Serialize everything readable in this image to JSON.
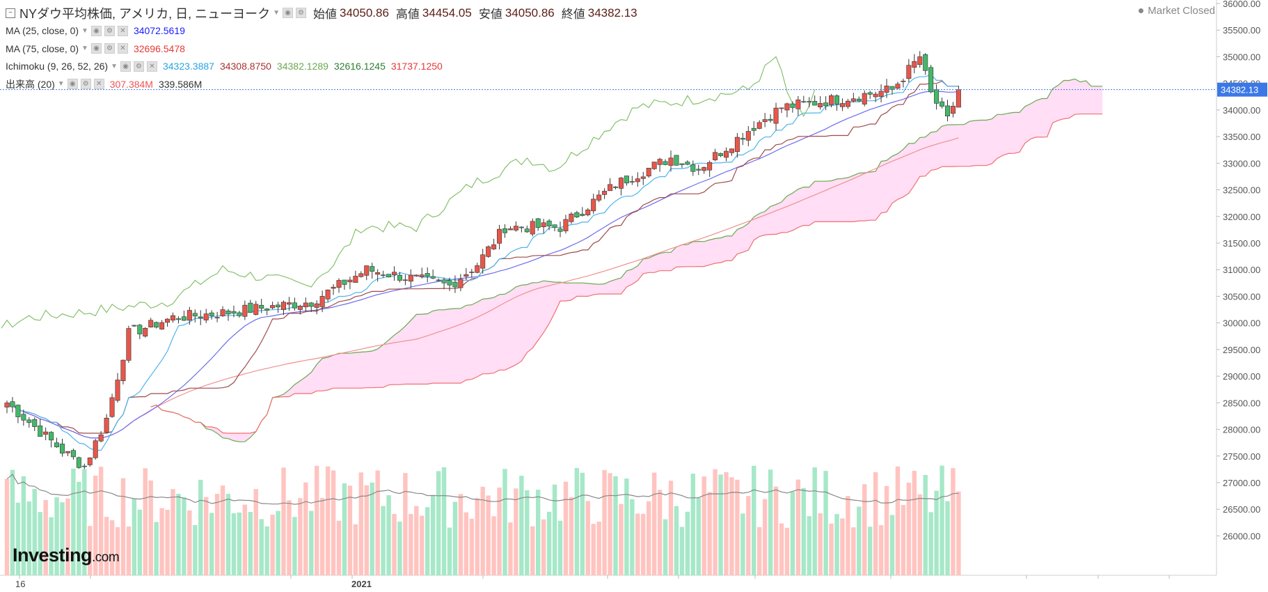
{
  "header": {
    "title": "NYダウ平均株価, アメリカ, 日, ニューヨーク",
    "ohlc": [
      {
        "label": "始値",
        "value": "34050.86"
      },
      {
        "label": "高値",
        "value": "34454.05"
      },
      {
        "label": "安値",
        "value": "34050.86"
      },
      {
        "label": "終値",
        "value": "34382.13"
      }
    ],
    "status": "Market Closed"
  },
  "indicators": [
    {
      "name": "MA (25, close, 0)",
      "values": [
        {
          "v": "34072.5619",
          "color": "#1a1aff"
        }
      ]
    },
    {
      "name": "MA (75, close, 0)",
      "values": [
        {
          "v": "32696.5478",
          "color": "#e53935"
        }
      ]
    },
    {
      "name": "Ichimoku (9, 26, 52, 26)",
      "values": [
        {
          "v": "34323.3887",
          "color": "#29a3e0"
        },
        {
          "v": "34308.8750",
          "color": "#a83232"
        },
        {
          "v": "34382.1289",
          "color": "#6aa84f"
        },
        {
          "v": "32616.1245",
          "color": "#2e7d32"
        },
        {
          "v": "31737.1250",
          "color": "#e53935"
        }
      ]
    },
    {
      "name": "出来高 (20)",
      "values": [
        {
          "v": "307.384M",
          "color": "#ef5350"
        },
        {
          "v": "339.586M",
          "color": "#333333"
        }
      ]
    }
  ],
  "logo": {
    "main": "Investing",
    "suffix": ".com"
  },
  "colors": {
    "up": "#e8564a",
    "down": "#43b86a",
    "tenkan": "#4fb3ea",
    "kijun": "#9e4a4a",
    "chikou": "#86c06c",
    "spanA": "#6aa84f",
    "spanB": "#ef7070",
    "cloud": "#ffd8f5",
    "ma25": "#6b6bef",
    "ma75": "#f08f8f",
    "volUp": "#ffc4c0",
    "volDown": "#a6e8c8",
    "volMA": "#888888",
    "priceLine": "#3b78e7"
  },
  "chart_data": {
    "type": "candlestick",
    "symbol": "NYダウ平均株価",
    "timeframe": "日",
    "x_labels": [
      "16",
      "2021"
    ],
    "y_ticks": [
      26000,
      26500,
      27000,
      27500,
      28000,
      28500,
      29000,
      29500,
      30000,
      30500,
      31000,
      31500,
      32000,
      32500,
      33000,
      33500,
      34000,
      34500,
      35000,
      35500,
      36000
    ],
    "ylim": [
      25600,
      36000
    ],
    "last_price": "34382.13",
    "anchors": [
      [
        0,
        28500
      ],
      [
        10,
        27600
      ],
      [
        14,
        27300
      ],
      [
        18,
        28200
      ],
      [
        22,
        29800
      ],
      [
        30,
        30100
      ],
      [
        40,
        30200
      ],
      [
        55,
        30400
      ],
      [
        65,
        31000
      ],
      [
        80,
        30700
      ],
      [
        85,
        31100
      ],
      [
        90,
        31800
      ],
      [
        100,
        31800
      ],
      [
        110,
        32600
      ],
      [
        120,
        33100
      ],
      [
        125,
        32900
      ],
      [
        130,
        33300
      ],
      [
        135,
        33700
      ],
      [
        140,
        34050
      ],
      [
        150,
        34200
      ],
      [
        160,
        34380
      ],
      [
        165,
        35000
      ],
      [
        167,
        34300
      ],
      [
        170,
        33800
      ],
      [
        172,
        34382
      ]
    ],
    "volume_range": [
      0,
      500
    ],
    "volume_ma": 339.586
  }
}
